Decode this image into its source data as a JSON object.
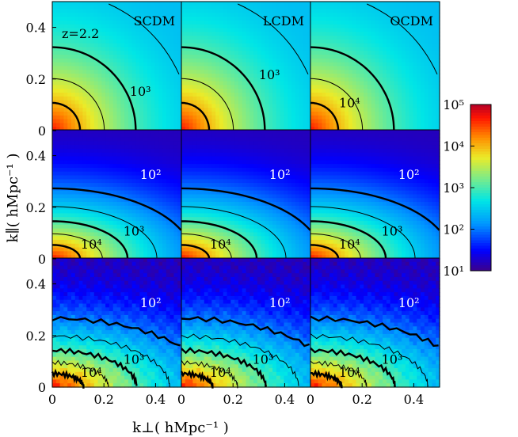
{
  "chart_data": {
    "type": "heatmap",
    "layout": "3x3 grid",
    "panel_columns": [
      "SCDM",
      "LCDM",
      "OCDM"
    ],
    "redshift_label": "z=2.2",
    "xlabel": "k⊥( hMpc⁻¹ )",
    "ylabel": "k∥( hMpc⁻¹ )",
    "xlim": [
      0,
      0.5
    ],
    "ylim": [
      0,
      0.5
    ],
    "x_ticks": [
      "0",
      "0.2",
      "0.4"
    ],
    "y_ticks": [
      "0",
      "0.2",
      "0.4"
    ],
    "colorbar": {
      "scale": "log",
      "range": [
        10,
        100000
      ],
      "tick_labels": [
        "10⁵",
        "10⁴",
        "10³",
        "10²",
        "10¹"
      ]
    },
    "rows": [
      {
        "log_power_at_origin": 4.7,
        "log_power_at_far_corner": 2.4,
        "anisotropy": 1.0,
        "noise": 0,
        "contour_labels": [
          [
            "10³"
          ],
          [
            "10³"
          ],
          [
            "10⁴"
          ]
        ]
      },
      {
        "log_power_at_origin": 4.7,
        "log_power_at_far_corner": 1.2,
        "anisotropy": 2.0,
        "noise": 0,
        "contour_labels": [
          [
            "10²",
            "10³",
            "10⁴"
          ],
          [
            "10²",
            "10⁴"
          ],
          [
            "10²",
            "10³",
            "10⁴"
          ]
        ]
      },
      {
        "log_power_at_origin": 4.7,
        "log_power_at_far_corner": 1.2,
        "anisotropy": 2.3,
        "noise": 1,
        "contour_labels": [
          [
            "10²",
            "10³",
            "10⁴"
          ],
          [
            "10²",
            "10³",
            "10⁴"
          ],
          [
            "10²",
            "10³",
            "10⁴"
          ]
        ]
      }
    ]
  }
}
